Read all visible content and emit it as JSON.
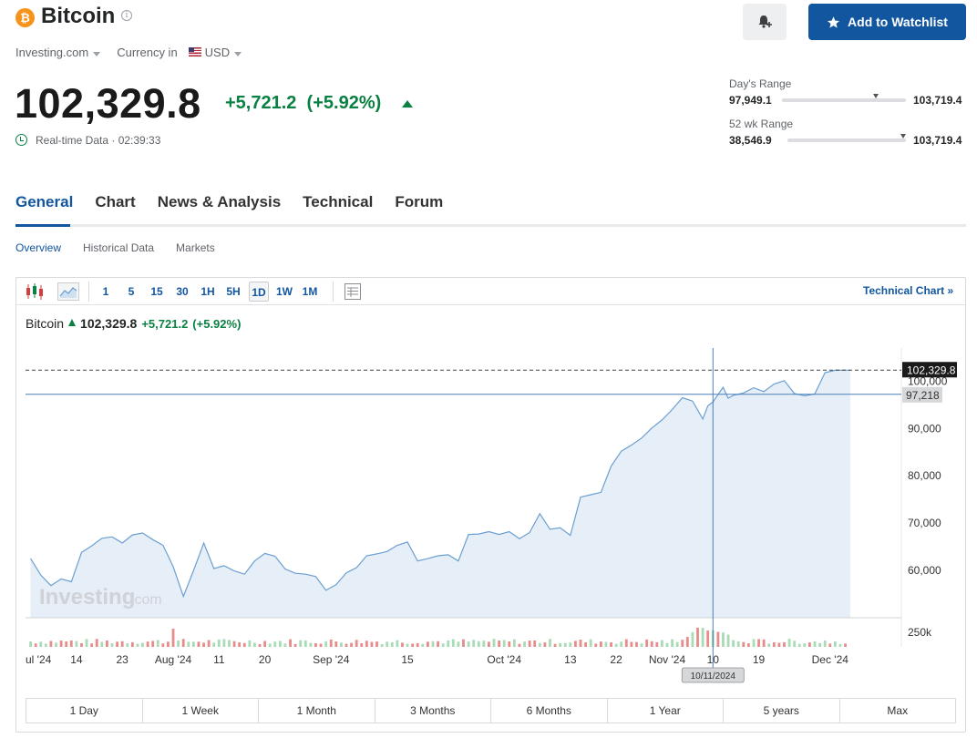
{
  "header": {
    "title": "Bitcoin",
    "logo_glyph": "₿",
    "source": "Investing.com",
    "currency_label": "Currency in",
    "currency": "USD",
    "price": "102,329.8",
    "change": "+5,721.2",
    "change_pct": "(+5.92%)",
    "realtime": "Real-time Data · 02:39:33",
    "watchlist_label": "Add to Watchlist"
  },
  "ranges": {
    "day_label": "Day's Range",
    "day_low": "97,949.1",
    "day_high": "103,719.4",
    "day_position": 0.76,
    "wk52_label": "52 wk Range",
    "wk52_low": "38,546.9",
    "wk52_high": "103,719.4",
    "wk52_position": 0.98
  },
  "tabs": [
    "General",
    "Chart",
    "News & Analysis",
    "Technical",
    "Forum"
  ],
  "subtabs": [
    "Overview",
    "Historical Data",
    "Markets"
  ],
  "toolbar": {
    "intervals": [
      "1",
      "5",
      "15",
      "30",
      "1H",
      "5H",
      "1D",
      "1W",
      "1M"
    ],
    "selected": "1D",
    "technical_link": "Technical Chart »"
  },
  "legend": {
    "name": "Bitcoin",
    "price": "102,329.8",
    "change": "+5,721.2",
    "change_pct": "(+5.92%)"
  },
  "periods": [
    "1 Day",
    "1 Week",
    "1 Month",
    "3 Months",
    "6 Months",
    "1 Year",
    "5 years",
    "Max"
  ],
  "chart_data": {
    "type": "area",
    "y_ticks": [
      "100,000",
      "90,000",
      "80,000",
      "70,000",
      "60,000"
    ],
    "y_tick_values": [
      100000,
      90000,
      80000,
      70000,
      60000
    ],
    "ylim": [
      50000,
      107000
    ],
    "x_ticks": [
      "ul '24",
      "14",
      "23",
      "Aug '24",
      "11",
      "20",
      "Sep '24",
      "15",
      "Oct '24",
      "13",
      "22",
      "Nov '24",
      "10",
      "19",
      "Dec '24"
    ],
    "x_tick_days": [
      0,
      9,
      18,
      28,
      37,
      46,
      59,
      74,
      93,
      106,
      115,
      125,
      134,
      143,
      157
    ],
    "last_price_label": "102,329.8",
    "last_price": 102329.8,
    "crosshair_price_label": "97,218",
    "crosshair_price": 97218,
    "crosshair_date": "10/11/2024",
    "crosshair_day": 134,
    "volume_axis_label": "250k",
    "watermark": "Investing",
    "watermark_suffix": ".com",
    "colors": {
      "line": "#6b9fd1",
      "fill": "#e6eef7",
      "volume_up": "#a8dbb6",
      "volume_down": "#e88b8b"
    },
    "series_days": [
      0,
      2,
      4,
      6,
      8,
      10,
      12,
      14,
      16,
      18,
      20,
      22,
      24,
      26,
      28,
      30,
      32,
      34,
      36,
      38,
      40,
      42,
      44,
      46,
      48,
      50,
      52,
      54,
      56,
      58,
      60,
      62,
      64,
      66,
      68,
      70,
      72,
      74,
      76,
      78,
      80,
      82,
      84,
      86,
      88,
      90,
      92,
      94,
      96,
      98,
      100,
      102,
      104,
      106,
      108,
      110,
      112,
      114,
      116,
      118,
      120,
      122,
      124,
      126,
      128,
      130,
      132,
      133,
      134,
      135,
      136,
      137,
      138,
      140,
      142,
      144,
      146,
      148,
      150,
      152,
      154,
      156,
      158,
      160,
      161
    ],
    "series_values": [
      62500,
      59000,
      56800,
      58200,
      57600,
      63800,
      65200,
      66800,
      67100,
      65800,
      67500,
      67900,
      66500,
      65300,
      60800,
      54500,
      60000,
      65800,
      60400,
      61000,
      59900,
      59200,
      62000,
      63600,
      63000,
      60300,
      59400,
      59200,
      58700,
      55800,
      57000,
      59500,
      60600,
      63100,
      63500,
      64000,
      65300,
      66000,
      62000,
      62500,
      63100,
      63300,
      62000,
      67600,
      67700,
      68200,
      67600,
      68200,
      66700,
      68000,
      72000,
      68700,
      69000,
      67400,
      75500,
      76000,
      76500,
      82000,
      85200,
      86500,
      88000,
      90100,
      91800,
      94000,
      96500,
      95800,
      92000,
      94800,
      95600,
      97200,
      98700,
      96400,
      97000,
      97500,
      98600,
      97800,
      99400,
      100100,
      97400,
      96900,
      97300,
      101800,
      102300,
      102329.8,
      102329.8
    ]
  }
}
